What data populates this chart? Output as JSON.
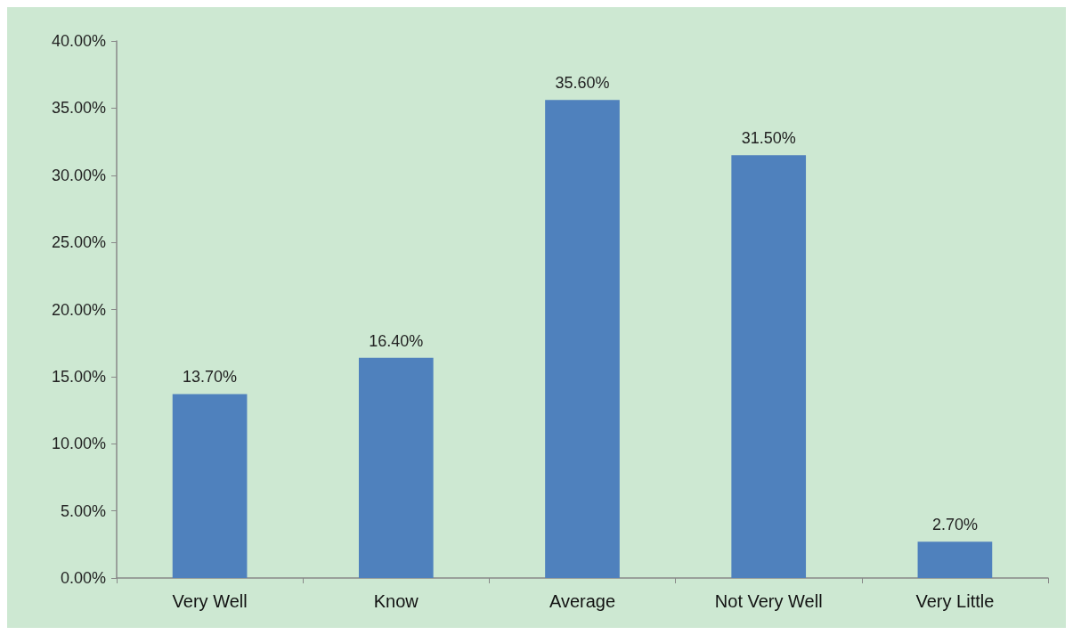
{
  "chart_data": {
    "type": "bar",
    "categories": [
      "Very Well",
      "Know",
      "Average",
      "Not Very Well",
      "Very Little"
    ],
    "values": [
      13.7,
      16.4,
      35.6,
      31.5,
      2.7
    ],
    "value_labels": [
      "13.70%",
      "16.40%",
      "35.60%",
      "31.50%",
      "2.70%"
    ],
    "color": "#4f81bd",
    "ylim": [
      0,
      40
    ],
    "yticks": [
      {
        "value": 0,
        "label": "0.00%"
      },
      {
        "value": 5,
        "label": "5.00%"
      },
      {
        "value": 10,
        "label": "10.00%"
      },
      {
        "value": 15,
        "label": "15.00%"
      },
      {
        "value": 20,
        "label": "20.00%"
      },
      {
        "value": 25,
        "label": "25.00%"
      },
      {
        "value": 30,
        "label": "30.00%"
      },
      {
        "value": 35,
        "label": "35.00%"
      },
      {
        "value": 40,
        "label": "40.00%"
      }
    ],
    "grid": false
  }
}
